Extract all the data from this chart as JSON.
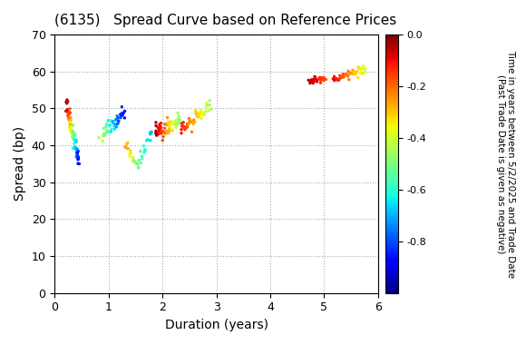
{
  "title": "(6135)   Spread Curve based on Reference Prices",
  "xlabel": "Duration (years)",
  "ylabel": "Spread (bp)",
  "colorbar_label": "Time in years between 5/2/2025 and Trade Date\n(Past Trade Date is given as negative)",
  "xlim": [
    0,
    6
  ],
  "ylim": [
    0,
    70
  ],
  "xticks": [
    0,
    1,
    2,
    3,
    4,
    5,
    6
  ],
  "yticks": [
    0,
    10,
    20,
    30,
    40,
    50,
    60,
    70
  ],
  "cmap": "jet",
  "clim": [
    -1.0,
    0.0
  ],
  "cticks": [
    0.0,
    -0.2,
    -0.4,
    -0.6,
    -0.8
  ],
  "point_size": 6
}
